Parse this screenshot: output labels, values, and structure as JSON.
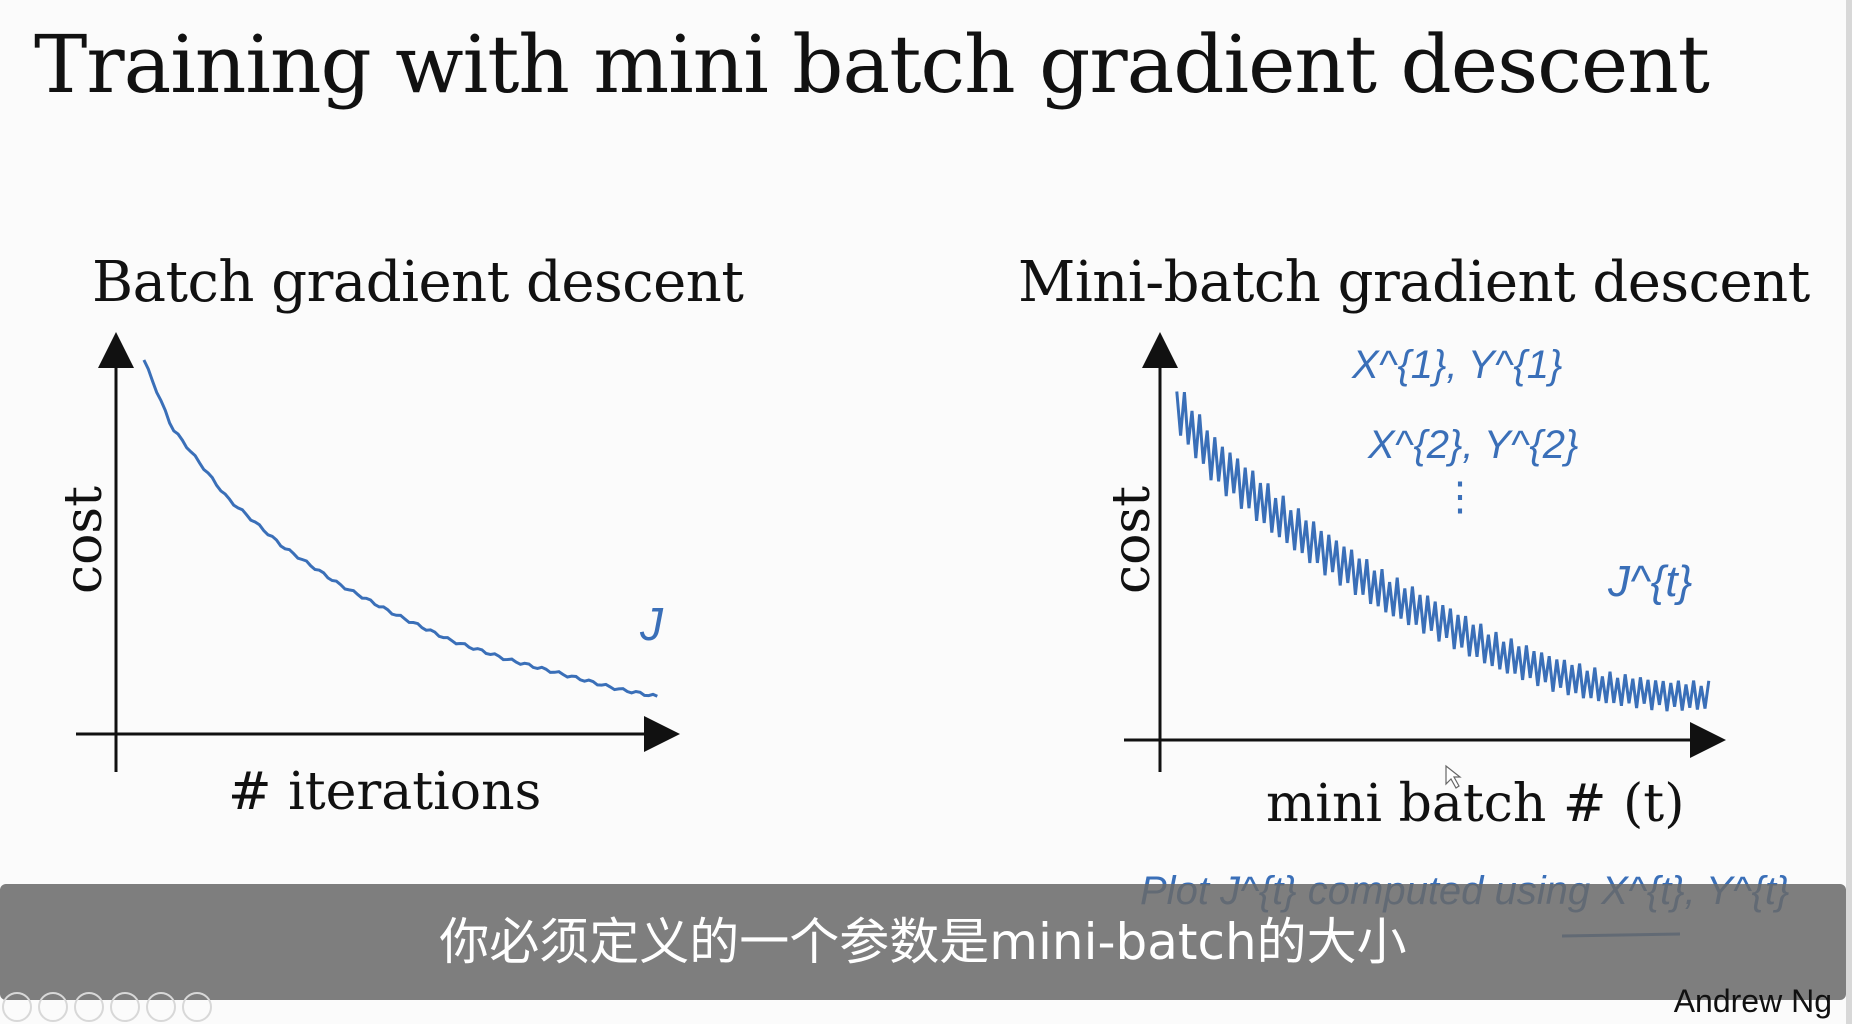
{
  "slide": {
    "title": "Training with mini batch gradient descent",
    "author": "Andrew Ng"
  },
  "subtitle": "你必须定义的一个参数是mini-batch的大小",
  "colors": {
    "ink": "#3a6fb8",
    "axes": "#111111",
    "subtitle_bg": "#6b6b6b"
  },
  "icons": [
    "prev-icon",
    "play-icon",
    "pen-icon",
    "copy-icon",
    "zoom-icon",
    "more-icon"
  ],
  "chart_data": [
    {
      "type": "line",
      "title": "Batch gradient descent",
      "xlabel": "# iterations",
      "ylabel": "cost",
      "annotation": "J",
      "grid": false,
      "legend": "none",
      "xlim": [
        0,
        100
      ],
      "ylim": [
        0,
        100
      ],
      "series": [
        {
          "name": "",
          "x": [
            5,
            10,
            20,
            30,
            40,
            50,
            60,
            70,
            80,
            90,
            97
          ],
          "y": [
            100,
            82,
            63,
            50,
            40,
            32,
            25,
            20,
            16,
            12,
            10
          ]
        }
      ]
    },
    {
      "type": "line",
      "title": "Mini-batch gradient descent",
      "xlabel": "mini batch # (t)",
      "ylabel": "cost",
      "annotation": "J^{t}",
      "notes": [
        "X^{1}, Y^{1}",
        "X^{2}, Y^{2}",
        "⋮",
        "Plot J^{t} computed using X^{t}, Y^{t}"
      ],
      "grid": false,
      "legend": "none",
      "xlim": [
        0,
        100
      ],
      "ylim": [
        0,
        100
      ],
      "series": [
        {
          "name": "",
          "noisy": true,
          "x": [
            3,
            10,
            20,
            30,
            40,
            50,
            60,
            70,
            80,
            90,
            98
          ],
          "y": [
            90,
            75,
            62,
            50,
            40,
            32,
            24,
            18,
            14,
            12,
            12
          ]
        }
      ]
    }
  ]
}
